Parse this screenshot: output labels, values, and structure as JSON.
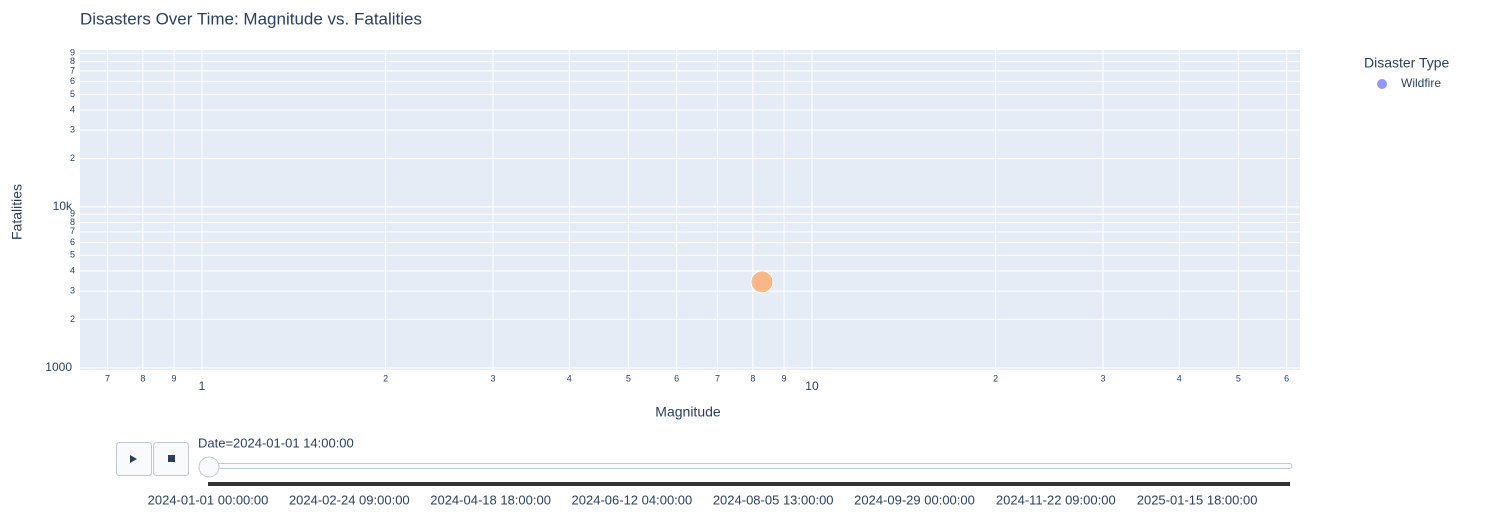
{
  "chart_data": {
    "type": "scatter",
    "title": "Disasters Over Time: Magnitude vs. Fatalities",
    "x_label": "Magnitude",
    "y_label": "Fatalities",
    "x_log": true,
    "y_log": true,
    "grid": true,
    "xlim": [
      0.631,
      63.1
    ],
    "ylim": [
      970,
      94400
    ],
    "xticks": [
      {
        "value": 0.7,
        "label": "7"
      },
      {
        "value": 0.8,
        "label": "8"
      },
      {
        "value": 0.9,
        "label": "9"
      },
      1,
      2,
      3,
      4,
      5,
      6,
      7,
      8,
      9,
      10,
      {
        "value": 20,
        "label": "2"
      },
      {
        "value": 30,
        "label": "3"
      },
      {
        "value": 40,
        "label": "4"
      },
      {
        "value": 50,
        "label": "5"
      },
      {
        "value": 60,
        "label": "6"
      }
    ],
    "yticks": [
      1000,
      {
        "value": 2000,
        "label": "2"
      },
      {
        "value": 3000,
        "label": "3"
      },
      {
        "value": 4000,
        "label": "4"
      },
      {
        "value": 5000,
        "label": "5"
      },
      {
        "value": 6000,
        "label": "6"
      },
      {
        "value": 7000,
        "label": "7"
      },
      {
        "value": 8000,
        "label": "8"
      },
      {
        "value": 9000,
        "label": "9"
      },
      {
        "value": 10000,
        "label": "10k"
      },
      {
        "value": 20000,
        "label": "2"
      },
      {
        "value": 30000,
        "label": "3"
      },
      {
        "value": 40000,
        "label": "4"
      },
      {
        "value": 50000,
        "label": "5"
      },
      {
        "value": 60000,
        "label": "6"
      },
      {
        "value": 70000,
        "label": "7"
      },
      {
        "value": 80000,
        "label": "8"
      },
      {
        "value": 90000,
        "label": "9"
      }
    ],
    "points": [
      {
        "x": 8.28,
        "y": 3420,
        "color": "#FFA15A"
      }
    ],
    "legend": {
      "title": "Disaster Type",
      "position": "top-right",
      "items": [
        {
          "name": "Wildfire",
          "color": "#636efa"
        }
      ]
    },
    "slider": {
      "current": "Date=2024-01-01 14:00:00",
      "labels": [
        "2024-01-01 00:00:00",
        "2024-02-24 09:00:00",
        "2024-04-18 18:00:00",
        "2024-06-12 04:00:00",
        "2024-08-05 13:00:00",
        "2024-09-29 00:00:00",
        "2024-11-22 09:00:00",
        "2025-01-15 18:00:00"
      ]
    }
  }
}
